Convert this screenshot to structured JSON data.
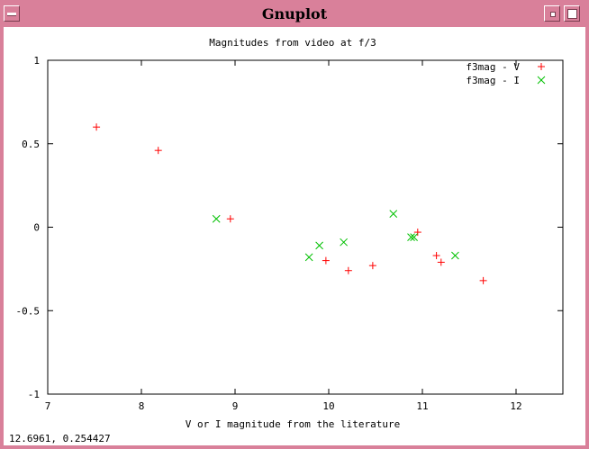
{
  "window": {
    "title": "Gnuplot"
  },
  "status_bar": {
    "coords": "12.6961,  0.254427"
  },
  "colors": {
    "v_series": "#ff0000",
    "i_series": "#00c000",
    "frame": "#d9809a"
  },
  "chart_data": {
    "type": "scatter",
    "title": "Magnitudes from video at f/3",
    "xlabel": "V or I magnitude from the literature",
    "ylabel": "",
    "xlim": [
      7,
      12.5
    ],
    "ylim": [
      -1,
      1
    ],
    "x_ticks": [
      "7",
      "8",
      "9",
      "10",
      "11",
      "12"
    ],
    "y_ticks": [
      "1",
      "0.5",
      "0",
      "-0.5",
      "-1"
    ],
    "legend_position": "top-right",
    "series": [
      {
        "name": "f3mag - V",
        "marker": "plus",
        "color": "#ff0000",
        "points": [
          [
            7.52,
            0.6
          ],
          [
            8.18,
            0.46
          ],
          [
            8.95,
            0.05
          ],
          [
            9.97,
            -0.2
          ],
          [
            10.21,
            -0.26
          ],
          [
            10.47,
            -0.23
          ],
          [
            10.95,
            -0.03
          ],
          [
            11.15,
            -0.17
          ],
          [
            11.2,
            -0.21
          ],
          [
            11.65,
            -0.32
          ]
        ]
      },
      {
        "name": "f3mag - I",
        "marker": "cross",
        "color": "#00c000",
        "points": [
          [
            8.8,
            0.05
          ],
          [
            9.79,
            -0.18
          ],
          [
            9.9,
            -0.11
          ],
          [
            10.16,
            -0.09
          ],
          [
            10.69,
            0.08
          ],
          [
            10.88,
            -0.06
          ],
          [
            10.91,
            -0.06
          ],
          [
            11.35,
            -0.17
          ]
        ]
      }
    ]
  }
}
